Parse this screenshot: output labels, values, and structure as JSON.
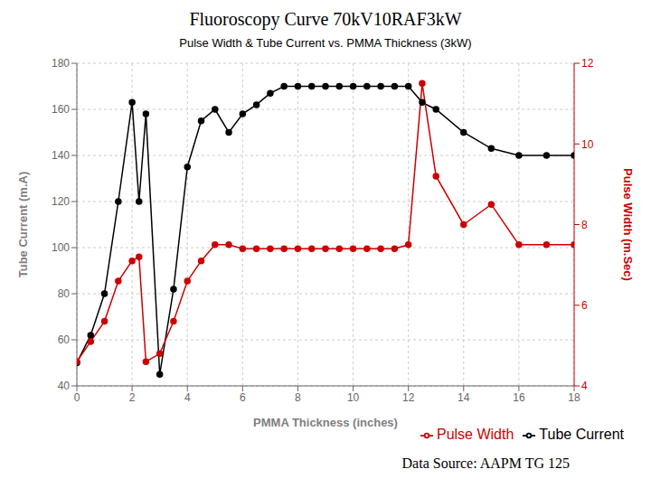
{
  "chart_data": {
    "type": "line",
    "title": "Fluoroscopy Curve 70kV10RAF3kW",
    "subtitle": "Pulse Width & Tube Current vs. PMMA Thickness (3kW)",
    "xlabel": "PMMA Thickness (inches)",
    "ylabel": "Tube Current (m.A)",
    "y2label": "Pulse Width (m.Sec)",
    "annotations": [
      "Data Source: AAPM TG 125"
    ],
    "x": [
      0,
      0.5,
      1.0,
      1.5,
      2.0,
      2.25,
      2.5,
      3.0,
      3.5,
      4.0,
      4.5,
      5.0,
      5.5,
      6.0,
      6.5,
      7.0,
      7.5,
      8.0,
      8.5,
      9.0,
      9.5,
      10.0,
      10.5,
      11.0,
      11.5,
      12.0,
      12.5,
      13.0,
      14.0,
      15.0,
      16.0,
      17.0,
      18.0
    ],
    "series": [
      {
        "name": "Tube Current",
        "color": "#000000",
        "marker": "circle",
        "values": [
          50,
          62,
          80,
          120,
          163,
          120,
          158,
          45,
          82,
          135,
          155,
          160,
          150,
          158,
          162,
          167,
          170,
          170,
          170,
          170,
          170,
          170,
          170,
          170,
          170,
          170,
          163,
          160,
          150,
          143,
          140,
          140,
          140
        ]
      },
      {
        "name": "Pulse Width",
        "color": "#cc0000",
        "marker": "circle",
        "axis": "y2",
        "values": [
          4.6,
          5.1,
          5.6,
          6.6,
          7.1,
          7.2,
          4.6,
          4.8,
          5.6,
          6.6,
          7.1,
          7.5,
          7.5,
          7.4,
          7.4,
          7.4,
          7.4,
          7.4,
          7.4,
          7.4,
          7.4,
          7.4,
          7.4,
          7.4,
          7.4,
          7.5,
          11.5,
          9.2,
          8.0,
          8.5,
          7.5,
          7.5,
          7.5
        ]
      }
    ],
    "xlim": [
      0,
      18
    ],
    "xticks": [
      0,
      2,
      4,
      6,
      8,
      10,
      12,
      14,
      16,
      18
    ],
    "ylim": [
      40,
      180
    ],
    "yticks": [
      40,
      60,
      80,
      100,
      120,
      140,
      160,
      180
    ],
    "y2lim": [
      4,
      12
    ],
    "y2ticks": [
      4,
      6,
      8,
      10,
      12
    ],
    "grid": true,
    "legend": "lower right"
  }
}
